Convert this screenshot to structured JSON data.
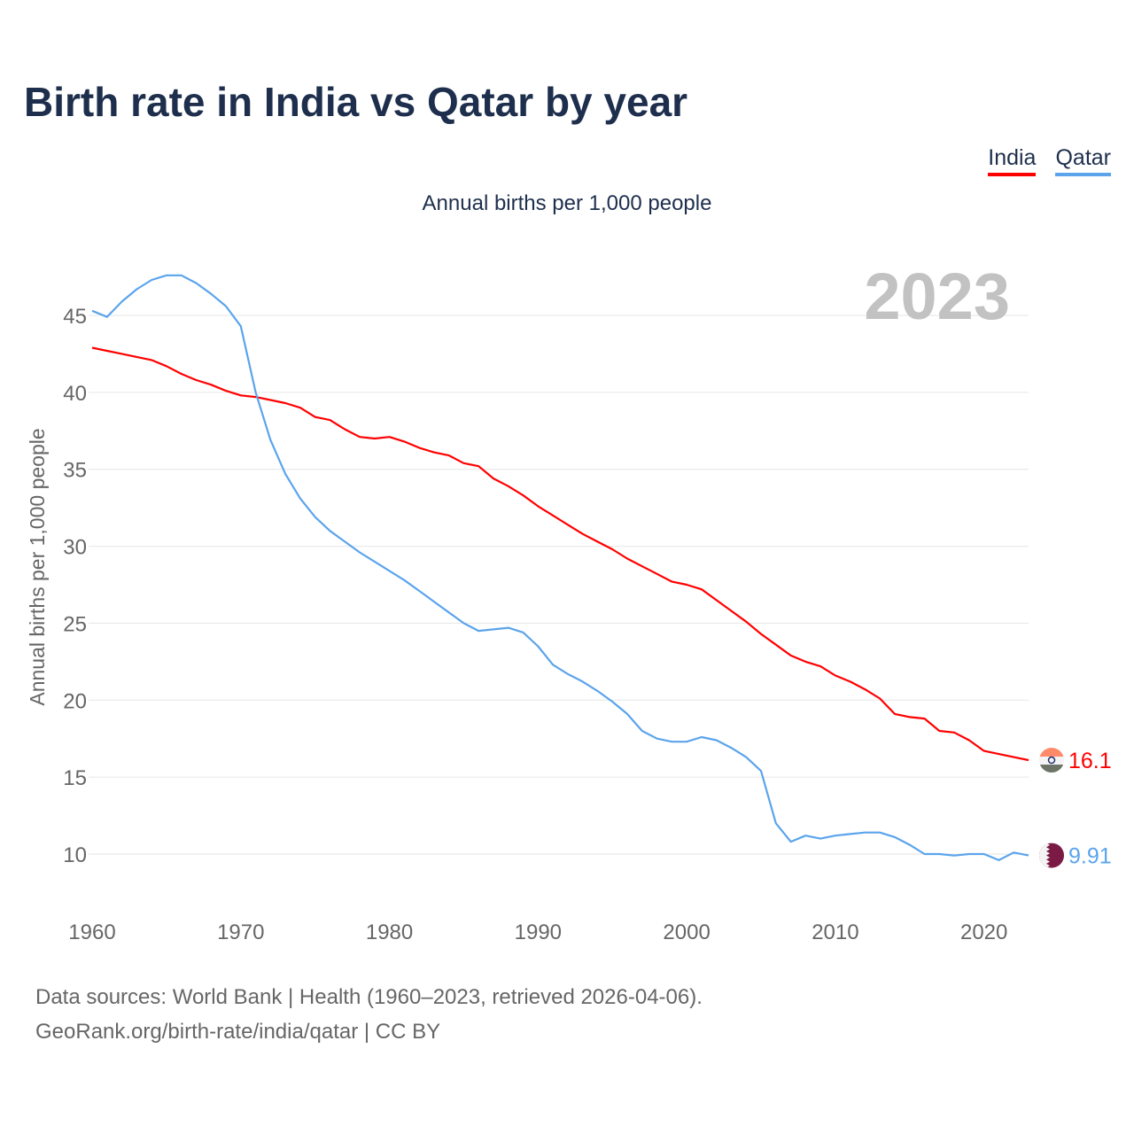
{
  "header": {
    "title": "Birth rate in India vs Qatar by year",
    "subtitle": "Annual births per 1,000 people"
  },
  "legend": [
    {
      "label": "India",
      "color": "#ff0000"
    },
    {
      "label": "Qatar",
      "color": "#5ba4ec"
    }
  ],
  "year_label": "2023",
  "footer": {
    "line1": "Data sources: World Bank | Health (1960–2023, retrieved 2026-04-06).",
    "line2": "GeoRank.org/birth-rate/india/qatar | CC BY"
  },
  "chart_data": {
    "type": "line",
    "title": "Birth rate in India vs Qatar by year",
    "xlabel": "",
    "ylabel": "Annual births per 1,000 people",
    "xlim": [
      1960,
      2023
    ],
    "ylim": [
      7,
      48
    ],
    "xticks": [
      1960,
      1970,
      1980,
      1990,
      2000,
      2010,
      2020
    ],
    "yticks": [
      10,
      15,
      20,
      25,
      30,
      35,
      40,
      45
    ],
    "grid": true,
    "legend_position": "top-right",
    "x_start": 1960,
    "series": [
      {
        "name": "India",
        "color": "#ff0000",
        "end_label": "16.1",
        "flag": "india-flag",
        "values": [
          42.9,
          42.7,
          42.5,
          42.3,
          42.1,
          41.7,
          41.2,
          40.8,
          40.5,
          40.1,
          39.8,
          39.7,
          39.5,
          39.3,
          39.0,
          38.4,
          38.2,
          37.6,
          37.1,
          37.0,
          37.1,
          36.8,
          36.4,
          36.1,
          35.9,
          35.4,
          35.2,
          34.4,
          33.9,
          33.3,
          32.6,
          32.0,
          31.4,
          30.8,
          30.3,
          29.8,
          29.2,
          28.7,
          28.2,
          27.7,
          27.5,
          27.2,
          26.5,
          25.8,
          25.1,
          24.3,
          23.6,
          22.9,
          22.5,
          22.2,
          21.6,
          21.2,
          20.7,
          20.1,
          19.1,
          18.9,
          18.8,
          18.0,
          17.9,
          17.4,
          16.7,
          16.5,
          16.3,
          16.1
        ]
      },
      {
        "name": "Qatar",
        "color": "#5ba4ec",
        "end_label": "9.91",
        "flag": "qatar-flag",
        "values": [
          45.3,
          44.9,
          45.9,
          46.7,
          47.3,
          47.6,
          47.6,
          47.1,
          46.4,
          45.6,
          44.3,
          40.0,
          36.9,
          34.7,
          33.1,
          31.9,
          31.0,
          30.3,
          29.6,
          29.0,
          28.4,
          27.8,
          27.1,
          26.4,
          25.7,
          25.0,
          24.5,
          24.6,
          24.7,
          24.4,
          23.5,
          22.3,
          21.7,
          21.2,
          20.6,
          19.9,
          19.1,
          18.0,
          17.5,
          17.3,
          17.3,
          17.6,
          17.4,
          16.9,
          16.3,
          15.4,
          12.0,
          10.8,
          11.2,
          11.0,
          11.2,
          11.3,
          11.4,
          11.4,
          11.1,
          10.6,
          10.0,
          10.0,
          9.9,
          10.0,
          10.0,
          9.6,
          10.1,
          9.91
        ]
      }
    ]
  }
}
